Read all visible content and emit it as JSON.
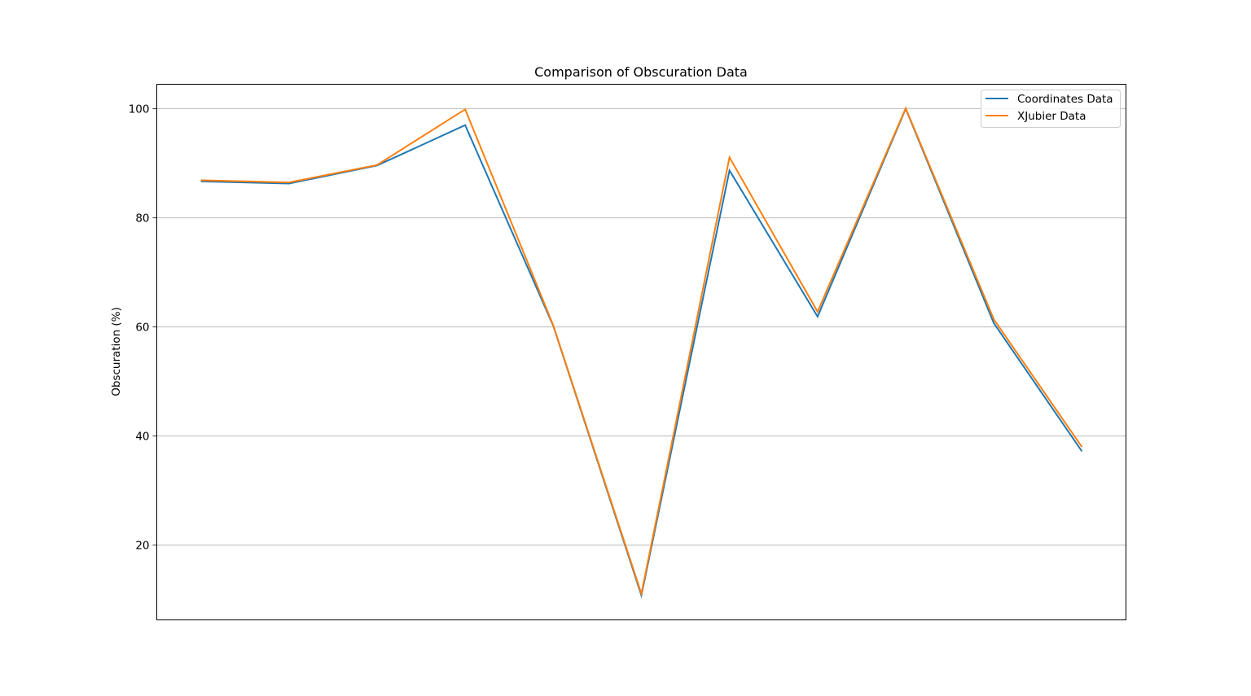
{
  "chart_data": {
    "type": "line",
    "title": "Comparison of Obscuration Data",
    "xlabel": "",
    "ylabel": "Obscuration (%)",
    "x": [
      0,
      1,
      2,
      3,
      4,
      5,
      6,
      7,
      8,
      9,
      10
    ],
    "xlim": [
      -0.5,
      10.5
    ],
    "ylim": [
      6.3,
      104.5
    ],
    "yticks": [
      20,
      40,
      60,
      80,
      100
    ],
    "grid": "y",
    "legend_position": "top-right",
    "series": [
      {
        "name": "Coordinates Data",
        "color": "#1f77b4",
        "values": [
          86.7,
          86.3,
          89.6,
          97.0,
          60.2,
          10.8,
          88.7,
          61.9,
          100.0,
          60.7,
          37.2
        ]
      },
      {
        "name": "XJubier Data",
        "color": "#ff7f0e",
        "values": [
          86.9,
          86.5,
          89.7,
          99.9,
          60.3,
          11.1,
          91.1,
          62.8,
          100.1,
          61.4,
          38.0
        ]
      }
    ]
  }
}
